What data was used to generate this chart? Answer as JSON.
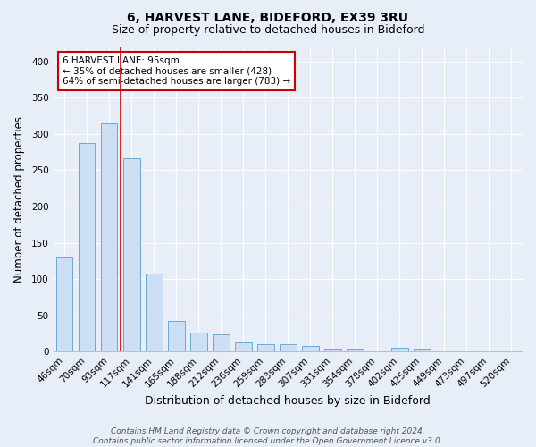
{
  "title": "6, HARVEST LANE, BIDEFORD, EX39 3RU",
  "subtitle": "Size of property relative to detached houses in Bideford",
  "xlabel": "Distribution of detached houses by size in Bideford",
  "ylabel": "Number of detached properties",
  "categories": [
    "46sqm",
    "70sqm",
    "93sqm",
    "117sqm",
    "141sqm",
    "165sqm",
    "188sqm",
    "212sqm",
    "236sqm",
    "259sqm",
    "283sqm",
    "307sqm",
    "331sqm",
    "354sqm",
    "378sqm",
    "402sqm",
    "425sqm",
    "449sqm",
    "473sqm",
    "497sqm",
    "520sqm"
  ],
  "values": [
    130,
    287,
    315,
    267,
    108,
    42,
    26,
    24,
    13,
    10,
    10,
    8,
    4,
    4,
    0,
    5,
    4,
    0,
    0,
    0,
    0
  ],
  "bar_color": "#ccdff5",
  "bar_edge_color": "#6aaad4",
  "red_line_index": 2.5,
  "annotation_text": "6 HARVEST LANE: 95sqm\n← 35% of detached houses are smaller (428)\n64% of semi-detached houses are larger (783) →",
  "annotation_box_color": "white",
  "annotation_box_edge_color": "#cc0000",
  "red_line_color": "#cc0000",
  "background_color": "#e8eef8",
  "grid_color": "#ffffff",
  "footer_line1": "Contains HM Land Registry data © Crown copyright and database right 2024.",
  "footer_line2": "Contains public sector information licensed under the Open Government Licence v3.0.",
  "ylim": [
    0,
    420
  ],
  "yticks": [
    0,
    50,
    100,
    150,
    200,
    250,
    300,
    350,
    400
  ],
  "title_fontsize": 10,
  "subtitle_fontsize": 9,
  "xlabel_fontsize": 9,
  "ylabel_fontsize": 8.5,
  "tick_fontsize": 7.5,
  "annotation_fontsize": 7.5,
  "footer_fontsize": 6.5
}
